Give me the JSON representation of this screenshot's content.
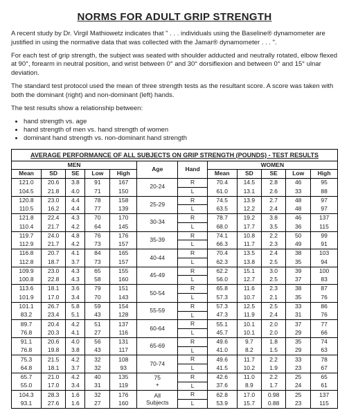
{
  "title": "NORMS FOR ADULT GRIP STRENGTH",
  "para1": "A recent study by Dr. Virgil Mathiowetz indicates that \" . . . individuals using the Baseline® dynamometer are justified in using the normative data that was collected with the Jamar® dynamometer . . . \".",
  "para2": "For each test of grip strength, the subject was seated with shoulder adducted and neutrally rotated, elbow flexed at 90°, forearm in neutral position, and wrist between 0° and 30° dorsiflexion and between 0° and 15° ulnar deviation.",
  "para3": "The standard test protocol used the mean of three strength tests as the resultant score. A score was taken with both the dominant (right) and non-dominant (left) hands.",
  "para4": "The test results show a relationship between:",
  "bullets": [
    "hand strength vs. age",
    "hand strength of men vs. hand strength of women",
    "dominant hand strength vs. non-dominant hand strength"
  ],
  "table": {
    "caption": "AVERAGE PERFORMANCE OF ALL SUBJECTS ON GRIP STRENGTH (POUNDS) - TEST RESULTS",
    "group_men": "MEN",
    "group_women": "WOMEN",
    "cols": [
      "Mean",
      "SD",
      "SE",
      "Low",
      "High",
      "Age",
      "Hand",
      "Mean",
      "SD",
      "SE",
      "Low",
      "High"
    ],
    "rows": [
      {
        "age": "20-24",
        "hand": "R",
        "men": [
          "121.0",
          "20.6",
          "3.8",
          "91",
          "167"
        ],
        "women": [
          "70.4",
          "14.5",
          "2.8",
          "46",
          "95"
        ]
      },
      {
        "age": "",
        "hand": "L",
        "men": [
          "104.5",
          "21.8",
          "4.0",
          "71",
          "150"
        ],
        "women": [
          "61.0",
          "13.1",
          "2.6",
          "33",
          "88"
        ]
      },
      {
        "age": "25-29",
        "hand": "R",
        "men": [
          "120.8",
          "23.0",
          "4.4",
          "78",
          "158"
        ],
        "women": [
          "74.5",
          "13.9",
          "2.7",
          "48",
          "97"
        ]
      },
      {
        "age": "",
        "hand": "L",
        "men": [
          "110.5",
          "16.2",
          "4.4",
          "77",
          "139"
        ],
        "women": [
          "63.5",
          "12.2",
          "2.4",
          "48",
          "97"
        ]
      },
      {
        "age": "30-34",
        "hand": "R",
        "men": [
          "121.8",
          "22.4",
          "4.3",
          "70",
          "170"
        ],
        "women": [
          "78.7",
          "19.2",
          "3.8",
          "46",
          "137"
        ]
      },
      {
        "age": "",
        "hand": "L",
        "men": [
          "110.4",
          "21.7",
          "4.2",
          "64",
          "145"
        ],
        "women": [
          "68.0",
          "17.7",
          "3.5",
          "36",
          "115"
        ]
      },
      {
        "age": "35-39",
        "hand": "R",
        "men": [
          "119.7",
          "24.0",
          "4.8",
          "76",
          "176"
        ],
        "women": [
          "74.1",
          "10.8",
          "2.2",
          "50",
          "99"
        ]
      },
      {
        "age": "",
        "hand": "L",
        "men": [
          "112.9",
          "21.7",
          "4.2",
          "73",
          "157"
        ],
        "women": [
          "66.3",
          "11.7",
          "2.3",
          "49",
          "91"
        ]
      },
      {
        "age": "40-44",
        "hand": "R",
        "men": [
          "116.8",
          "20.7",
          "4.1",
          "84",
          "165"
        ],
        "women": [
          "70.4",
          "13.5",
          "2.4",
          "38",
          "103"
        ]
      },
      {
        "age": "",
        "hand": "L",
        "men": [
          "112.8",
          "18.7",
          "3.7",
          "73",
          "157"
        ],
        "women": [
          "62.3",
          "13.8",
          "2.5",
          "35",
          "94"
        ]
      },
      {
        "age": "45-49",
        "hand": "R",
        "men": [
          "109.9",
          "23.0",
          "4.3",
          "65",
          "155"
        ],
        "women": [
          "62.2",
          "15.1",
          "3.0",
          "39",
          "100"
        ]
      },
      {
        "age": "",
        "hand": "L",
        "men": [
          "100.8",
          "22.8",
          "4.3",
          "58",
          "160"
        ],
        "women": [
          "56.0",
          "12.7",
          "2.5",
          "37",
          "83"
        ]
      },
      {
        "age": "50-54",
        "hand": "R",
        "men": [
          "113.6",
          "18.1",
          "3.6",
          "79",
          "151"
        ],
        "women": [
          "65.8",
          "11.6",
          "2.3",
          "38",
          "87"
        ]
      },
      {
        "age": "",
        "hand": "L",
        "men": [
          "101.9",
          "17.0",
          "3.4",
          "70",
          "143"
        ],
        "women": [
          "57.3",
          "10.7",
          "2.1",
          "35",
          "76"
        ]
      },
      {
        "age": "55-59",
        "hand": "R",
        "men": [
          "101.1",
          "26.7",
          "5.8",
          "59",
          "154"
        ],
        "women": [
          "57.3",
          "12.5",
          "2.5",
          "33",
          "86"
        ]
      },
      {
        "age": "",
        "hand": "L",
        "men": [
          "83.2",
          "23.4",
          "5.1",
          "43",
          "128"
        ],
        "women": [
          "47.3",
          "11.9",
          "2.4",
          "31",
          "76"
        ]
      },
      {
        "age": "60-64",
        "hand": "R",
        "men": [
          "89.7",
          "20.4",
          "4.2",
          "51",
          "137"
        ],
        "women": [
          "55.1",
          "10.1",
          "2.0",
          "37",
          "77"
        ]
      },
      {
        "age": "",
        "hand": "L",
        "men": [
          "76.8",
          "20.3",
          "4.1",
          "27",
          "116"
        ],
        "women": [
          "45.7",
          "10.1",
          "2.0",
          "29",
          "66"
        ]
      },
      {
        "age": "65-69",
        "hand": "R",
        "men": [
          "91.1",
          "20.6",
          "4.0",
          "56",
          "131"
        ],
        "women": [
          "49.6",
          "9.7",
          "1.8",
          "35",
          "74"
        ]
      },
      {
        "age": "",
        "hand": "L",
        "men": [
          "76.8",
          "19.8",
          "3.8",
          "43",
          "117"
        ],
        "women": [
          "41.0",
          "8.2",
          "1.5",
          "29",
          "63"
        ]
      },
      {
        "age": "70-74",
        "hand": "R",
        "men": [
          "75.3",
          "21.5",
          "4.2",
          "32",
          "108"
        ],
        "women": [
          "49.6",
          "11.7",
          "2.2",
          "33",
          "78"
        ]
      },
      {
        "age": "",
        "hand": "L",
        "men": [
          "64.8",
          "18.1",
          "3.7",
          "32",
          "93"
        ],
        "women": [
          "41.5",
          "10.2",
          "1.9",
          "23",
          "67"
        ]
      },
      {
        "age": "75 +",
        "hand": "R",
        "men": [
          "65.7",
          "21.0",
          "4.2",
          "40",
          "135"
        ],
        "women": [
          "42.6",
          "11.0",
          "2.2",
          "25",
          "65"
        ]
      },
      {
        "age": "",
        "hand": "L",
        "men": [
          "55.0",
          "17.0",
          "3.4",
          "31",
          "119"
        ],
        "women": [
          "37.6",
          "8.9",
          "1.7",
          "24",
          "61"
        ]
      },
      {
        "age": "All Subjects",
        "hand": "R",
        "men": [
          "104.3",
          "28.3",
          "1.6",
          "32",
          "176"
        ],
        "women": [
          "62.8",
          "17.0",
          "0.98",
          "25",
          "137"
        ]
      },
      {
        "age": "",
        "hand": "L",
        "men": [
          "93.1",
          "27.6",
          "1.6",
          "27",
          "160"
        ],
        "women": [
          "53.9",
          "15.7",
          "0.88",
          "23",
          "115"
        ]
      }
    ]
  }
}
